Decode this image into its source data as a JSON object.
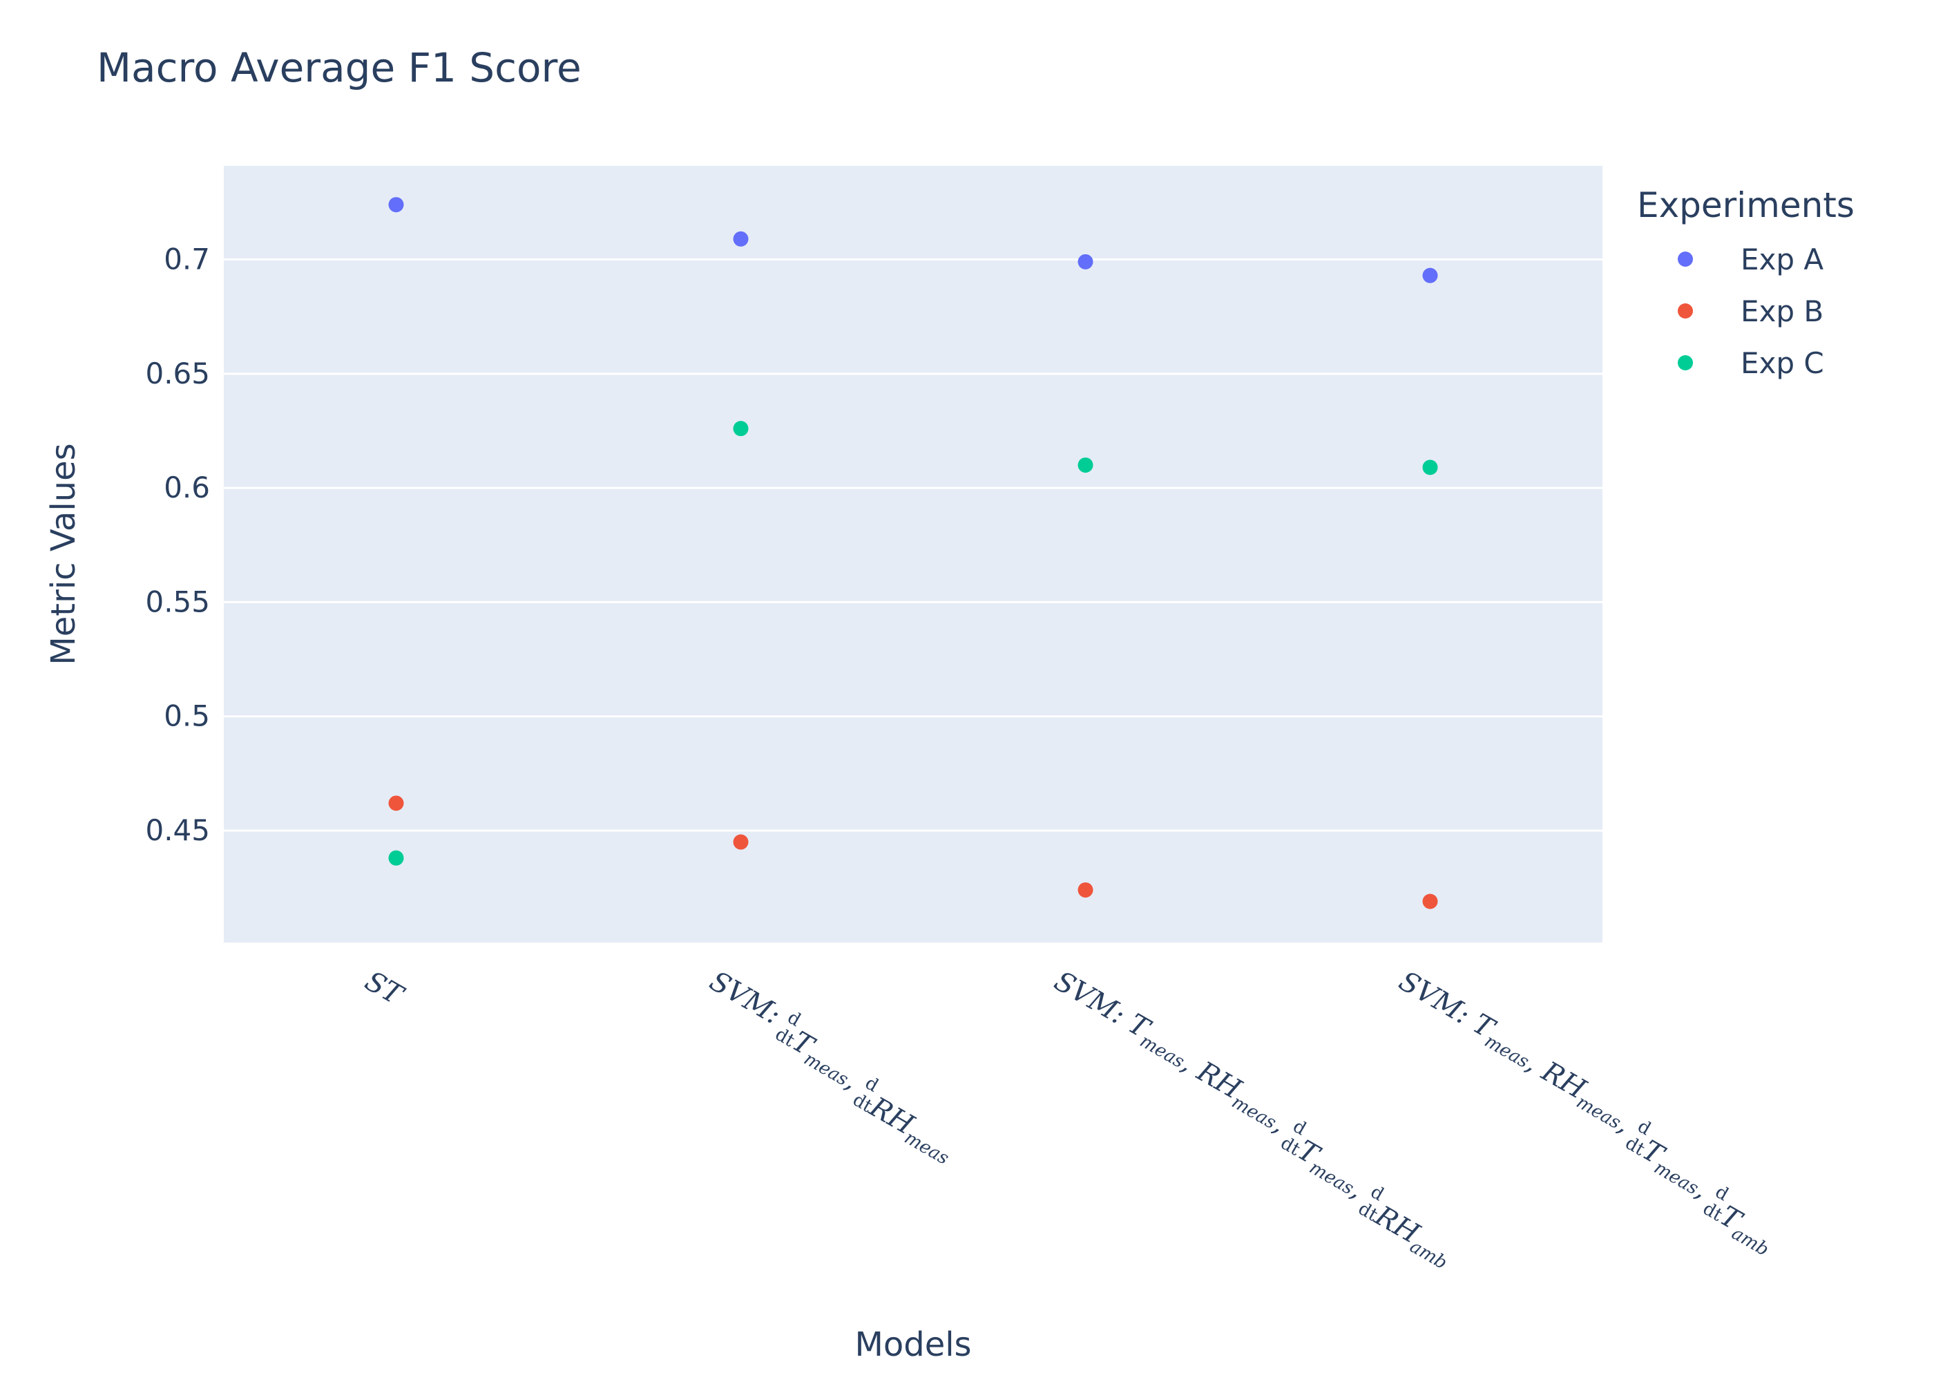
{
  "chart_data": {
    "type": "scatter",
    "title": "Macro Average F1 Score",
    "xlabel": "Models",
    "ylabel": "Metric Values",
    "categories": [
      {
        "text": "ST",
        "parts": [
          {
            "t": "ST"
          }
        ]
      },
      {
        "text": "SVM: d/dt T_meas, d/dt RH_meas",
        "parts": [
          {
            "t": "SVM: "
          },
          {
            "frac": true
          },
          {
            "t": "T"
          },
          {
            "sub": "meas"
          },
          {
            "t": ", "
          },
          {
            "frac": true
          },
          {
            "t": "RH"
          },
          {
            "sub": "meas"
          }
        ]
      },
      {
        "text": "SVM: T_meas, RH_meas, d/dt T_meas, d/dt RH_amb",
        "parts": [
          {
            "t": "SVM: T"
          },
          {
            "sub": "meas"
          },
          {
            "t": ", RH"
          },
          {
            "sub": "meas"
          },
          {
            "t": ", "
          },
          {
            "frac": true
          },
          {
            "t": "T"
          },
          {
            "sub": "meas"
          },
          {
            "t": ", "
          },
          {
            "frac": true
          },
          {
            "t": "RH"
          },
          {
            "sub": "amb"
          }
        ]
      },
      {
        "text": "SVM: T_meas, RH_meas, d/dt T_meas, d/dt T_amb",
        "parts": [
          {
            "t": "SVM: T"
          },
          {
            "sub": "meas"
          },
          {
            "t": ", RH"
          },
          {
            "sub": "meas"
          },
          {
            "t": ", "
          },
          {
            "frac": true
          },
          {
            "t": "T"
          },
          {
            "sub": "meas"
          },
          {
            "t": ", "
          },
          {
            "frac": true
          },
          {
            "t": "T"
          },
          {
            "sub": "amb"
          }
        ]
      }
    ],
    "series": [
      {
        "name": "Exp A",
        "color": "#636efa",
        "values": [
          0.724,
          0.709,
          0.699,
          0.693
        ]
      },
      {
        "name": "Exp B",
        "color": "#ef553b",
        "values": [
          0.462,
          0.445,
          0.424,
          0.419
        ]
      },
      {
        "name": "Exp C",
        "color": "#00cc96",
        "values": [
          0.438,
          0.626,
          0.61,
          0.609
        ]
      }
    ],
    "ylim": [
      0.401,
      0.741
    ],
    "yticks": [
      0.45,
      0.5,
      0.55,
      0.6,
      0.65,
      0.7
    ],
    "ytick_labels": [
      "0.45",
      "0.5",
      "0.55",
      "0.6",
      "0.65",
      "0.7"
    ],
    "grid": true,
    "legend": {
      "title": "Experiments",
      "placement": "right"
    }
  }
}
